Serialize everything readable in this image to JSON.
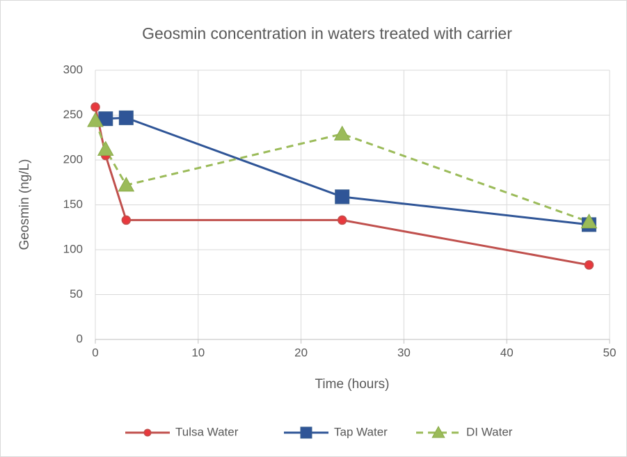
{
  "chart_data": {
    "type": "line",
    "title": "Geosmin concentration in waters treated with carrier",
    "x_label": "Time (hours)",
    "y_label": "Geosmin (ng/L)",
    "xlim": [
      0,
      50
    ],
    "xticks": [
      0,
      10,
      20,
      30,
      40,
      50
    ],
    "ylim": [
      0,
      300
    ],
    "yticks": [
      0,
      50,
      100,
      150,
      200,
      250,
      300
    ],
    "grid": true,
    "legend": "bottom",
    "series": [
      {
        "name": "Tulsa Water",
        "color": "#c0504d",
        "marker": "circle",
        "dashed": false,
        "x": [
          0,
          1,
          3,
          24,
          48
        ],
        "values": [
          259,
          205,
          133,
          133,
          83
        ]
      },
      {
        "name": "Tap Water",
        "color": "#2f5597",
        "marker": "square",
        "dashed": false,
        "x": [
          1,
          3,
          24,
          48
        ],
        "values": [
          246,
          247,
          159,
          128
        ]
      },
      {
        "name": "DI Water",
        "color": "#9bbb59",
        "marker": "triangle",
        "dashed": true,
        "x": [
          0,
          1,
          3,
          24,
          48
        ],
        "values": [
          244,
          212,
          172,
          229,
          131
        ]
      }
    ]
  }
}
